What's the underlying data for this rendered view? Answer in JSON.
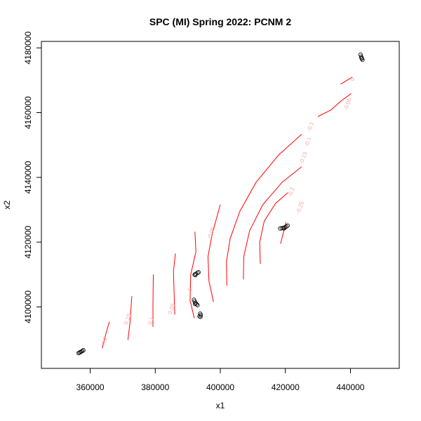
{
  "chart_data": {
    "type": "scatter",
    "title": "SPC (MI) Spring 2022: PCNM 2",
    "xlabel": "x1",
    "ylabel": "x2",
    "xlim": [
      345000,
      455000
    ],
    "ylim": [
      4081000,
      4182000
    ],
    "x_ticks": [
      360000,
      380000,
      400000,
      420000,
      440000
    ],
    "y_ticks": [
      4100000,
      4120000,
      4140000,
      4160000,
      4180000
    ],
    "x_tick_labels": [
      "360000",
      "380000",
      "400000",
      "420000",
      "440000"
    ],
    "y_tick_labels": [
      "4100000",
      "4120000",
      "4140000",
      "4160000",
      "4180000"
    ],
    "grid": false,
    "legend": "none",
    "point_color": "#000000",
    "contour_color": "#ff0000",
    "points": [
      {
        "x": 356700,
        "y": 4085900
      },
      {
        "x": 357000,
        "y": 4086000
      },
      {
        "x": 357300,
        "y": 4086200
      },
      {
        "x": 357600,
        "y": 4086400
      },
      {
        "x": 357900,
        "y": 4086600
      },
      {
        "x": 356400,
        "y": 4085700
      },
      {
        "x": 392100,
        "y": 4110000
      },
      {
        "x": 392500,
        "y": 4110200
      },
      {
        "x": 393000,
        "y": 4110500
      },
      {
        "x": 393300,
        "y": 4110700
      },
      {
        "x": 392300,
        "y": 4109800
      },
      {
        "x": 391900,
        "y": 4102200
      },
      {
        "x": 392100,
        "y": 4101700
      },
      {
        "x": 392400,
        "y": 4101200
      },
      {
        "x": 392700,
        "y": 4100800
      },
      {
        "x": 393000,
        "y": 4100500
      },
      {
        "x": 392200,
        "y": 4100900
      },
      {
        "x": 393800,
        "y": 4097900
      },
      {
        "x": 394000,
        "y": 4097500
      },
      {
        "x": 393600,
        "y": 4097100
      },
      {
        "x": 393900,
        "y": 4096900
      },
      {
        "x": 418400,
        "y": 4124200
      },
      {
        "x": 418900,
        "y": 4124300
      },
      {
        "x": 419400,
        "y": 4124400
      },
      {
        "x": 419900,
        "y": 4124600
      },
      {
        "x": 420300,
        "y": 4124800
      },
      {
        "x": 420700,
        "y": 4125100
      },
      {
        "x": 419600,
        "y": 4124200
      },
      {
        "x": 443100,
        "y": 4177900
      },
      {
        "x": 443300,
        "y": 4177300
      },
      {
        "x": 443500,
        "y": 4176700
      },
      {
        "x": 443700,
        "y": 4176300
      },
      {
        "x": 443400,
        "y": 4176900
      }
    ],
    "contours": [
      {
        "label": "0.2",
        "path": [
          [
            363700,
            4087200
          ],
          [
            364700,
            4091200
          ],
          [
            365900,
            4095400
          ]
        ],
        "label_at": [
          364900,
          4089400
        ]
      },
      {
        "label": "0.15",
        "path": [
          [
            371600,
            4089800
          ],
          [
            372200,
            4094800
          ],
          [
            372800,
            4103300
          ]
        ],
        "label_at": [
          372000,
          4096000
        ]
      },
      {
        "label": "0.1",
        "path": [
          [
            379300,
            4093800
          ],
          [
            379300,
            4100500
          ],
          [
            379400,
            4110000
          ]
        ],
        "label_at": [
          379200,
          4095500
        ]
      },
      {
        "label": "0.05",
        "path": [
          [
            386000,
            4097600
          ],
          [
            385800,
            4104000
          ],
          [
            385600,
            4111000
          ],
          [
            386200,
            4116500
          ]
        ],
        "label_at": [
          385500,
          4099200
        ]
      },
      {
        "label": "0",
        "path": [
          [
            392000,
            4096500
          ],
          [
            390700,
            4102000
          ],
          [
            390900,
            4110000
          ],
          [
            392500,
            4117000
          ],
          [
            392200,
            4123200
          ]
        ],
        "label_at": [
          391200,
          4105200
        ]
      },
      {
        "label": "-0.05",
        "path": [
          [
            397900,
            4101500
          ],
          [
            396500,
            4108000
          ],
          [
            396200,
            4115500
          ],
          [
            397500,
            4122500
          ],
          [
            400000,
            4131600
          ]
        ],
        "label_at": [
          397700,
          4122600
        ]
      },
      {
        "label": "-0.1",
        "path": [
          [
            402000,
            4106500
          ],
          [
            401900,
            4114000
          ],
          [
            403000,
            4121000
          ],
          [
            406000,
            4129500
          ],
          [
            411000,
            4138500
          ],
          [
            418000,
            4147000
          ],
          [
            425000,
            4153300
          ]
        ],
        "label_at": [
          428200,
          4155500
        ]
      },
      {
        "label": "-0.15",
        "path": [
          [
            407100,
            4108500
          ],
          [
            407200,
            4115500
          ],
          [
            409000,
            4123500
          ],
          [
            413000,
            4131500
          ],
          [
            419000,
            4138500
          ],
          [
            425000,
            4143300
          ]
        ],
        "label_at": [
          426000,
          4145800
        ]
      },
      {
        "label": "-0.2",
        "path": [
          [
            412300,
            4113300
          ],
          [
            412100,
            4120000
          ],
          [
            413500,
            4126500
          ],
          [
            417000,
            4132000
          ],
          [
            420800,
            4135300
          ]
        ],
        "label_at": [
          422300,
          4135300
        ]
      },
      {
        "label": "-0.25",
        "path": [
          [
            418500,
            4119500
          ],
          [
            420200,
            4126200
          ]
        ],
        "label_at": [
          425000,
          4130500
        ]
      },
      {
        "label": "-0.1",
        "path": [
          [
            430000,
            4158800
          ],
          [
            434000,
            4160800
          ],
          [
            437000,
            4163500
          ],
          [
            440200,
            4165900
          ]
        ],
        "label_at": [
          427400,
          4150800
        ]
      },
      {
        "label": "-0.05",
        "path": [
          [
            428000,
            4162500
          ]
        ],
        "label_at": [
          439600,
          4162400
        ]
      },
      {
        "label": "0",
        "path": [
          [
            437000,
            4168800
          ],
          [
            440600,
            4171000
          ]
        ],
        "label_at": [
          441100,
          4170100
        ]
      }
    ]
  }
}
